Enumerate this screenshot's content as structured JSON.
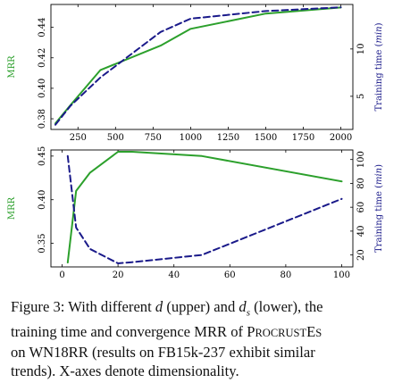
{
  "colors": {
    "green": "#2ca02c",
    "navy": "#1a1a8a",
    "axis": "#000000"
  },
  "chart_data": [
    {
      "type": "line",
      "dual_axis": true,
      "x_ticks": [
        250,
        500,
        750,
        1000,
        1250,
        1500,
        1750,
        2000
      ],
      "x_tick_labels": [
        "250",
        "500",
        "750",
        "1000",
        "1250",
        "1500",
        "1750",
        "2000"
      ],
      "xlim": [
        70,
        2080
      ],
      "left_axis": {
        "label": "MRR",
        "lim": [
          0.373,
          0.455
        ],
        "ticks": [
          0.38,
          0.4,
          0.42,
          0.44
        ],
        "tick_labels": [
          "0.38",
          "0.40",
          "0.42",
          "0.44"
        ]
      },
      "right_axis": {
        "label": "Training time (min)",
        "lim": [
          1.5,
          14.7
        ],
        "ticks": [
          5,
          10
        ],
        "tick_labels": [
          "5",
          "10"
        ]
      },
      "series": [
        {
          "axis": "left",
          "style": "solid",
          "color": "#2ca02c",
          "x": [
            100,
            200,
            400,
            800,
            1000,
            1500,
            2000
          ],
          "y": [
            0.377,
            0.389,
            0.412,
            0.428,
            0.439,
            0.449,
            0.453
          ]
        },
        {
          "axis": "right",
          "style": "dashed",
          "color": "#1a1a8a",
          "x": [
            100,
            200,
            400,
            800,
            1000,
            1500,
            2000
          ],
          "y": [
            2.0,
            4.0,
            7.0,
            11.8,
            13.2,
            14.0,
            14.4
          ]
        }
      ]
    },
    {
      "type": "line",
      "dual_axis": true,
      "x_ticks": [
        0,
        20,
        40,
        60,
        80,
        100
      ],
      "x_tick_labels": [
        "0",
        "20",
        "40",
        "60",
        "80",
        "100"
      ],
      "xlim": [
        -4,
        104
      ],
      "left_axis": {
        "label": "MRR",
        "lim": [
          0.323,
          0.457
        ],
        "ticks": [
          0.35,
          0.4,
          0.45
        ],
        "tick_labels": [
          "0.35",
          "0.40",
          "0.45"
        ]
      },
      "right_axis": {
        "label": "Training time (min)",
        "lim": [
          10,
          108
        ],
        "ticks": [
          20,
          40,
          60,
          80,
          100
        ],
        "tick_labels": [
          "20",
          "40",
          "60",
          "80",
          "100"
        ]
      },
      "series": [
        {
          "axis": "left",
          "style": "solid",
          "color": "#2ca02c",
          "x": [
            2,
            5,
            10,
            20,
            25,
            50,
            100
          ],
          "y": [
            0.328,
            0.41,
            0.431,
            0.455,
            0.455,
            0.45,
            0.421
          ]
        },
        {
          "axis": "right",
          "style": "dashed",
          "color": "#1a1a8a",
          "x": [
            2,
            5,
            10,
            20,
            25,
            50,
            100
          ],
          "y": [
            103,
            43,
            25,
            13,
            14,
            20,
            67
          ]
        }
      ]
    }
  ],
  "caption": {
    "line1_a": "Figure 3: With different ",
    "line1_d": "d",
    "line1_b": " (upper) and ",
    "line1_ds": "d",
    "line1_ds_sub": "s",
    "line1_c": " (lower), the",
    "line2": "training time and convergence MRR of ",
    "line2_p": "P",
    "line2_rocrust": "ROCRUST",
    "line2_e": "E",
    "line2_s": "S",
    "line3": "on WN18RR (results on FB15k-237 exhibit similar",
    "line4": "trends). X-axes denote dimensionality."
  }
}
